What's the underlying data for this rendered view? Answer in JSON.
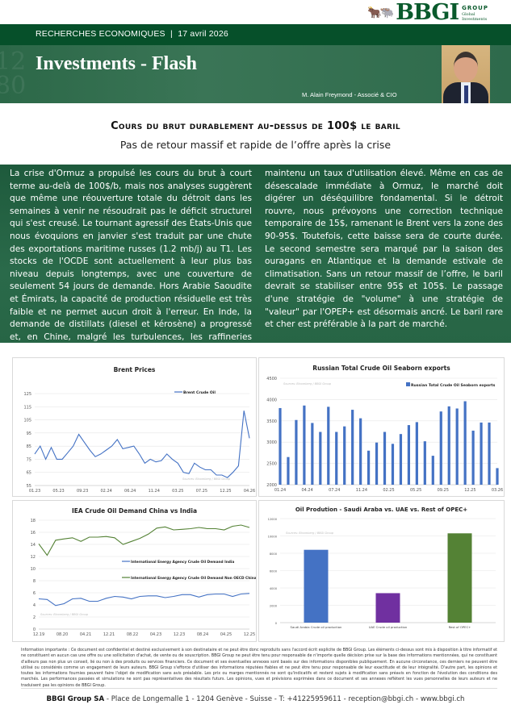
{
  "logo": {
    "name": "BBGI",
    "group": "GROUP",
    "line1": "Global",
    "line2": "Investments"
  },
  "header": {
    "section": "RECHERCHES ECONOMIQUES",
    "separator": "|",
    "date": "17 avril 2026",
    "title": "Investments - Flash",
    "author": "M. Alain Freymond - Associé & CIO"
  },
  "article": {
    "headline": "Cours du brut durablement au-dessus de 100$ le baril",
    "subheadline": "Pas de retour massif et rapide de l’offre après la crise",
    "col_left": "La crise d'Ormuz a propulsé les cours du brut à court terme au-delà de 100$/b, mais nos analyses suggèrent que même une réouverture totale du détroit dans les semaines à venir ne résoudrait pas le déficit structurel qui s'est creusé. Le tournant agressif des États-Unis que nous évoquions en janvier s'est traduit par une chute des exportations maritime russes (1.2 mb/j) au T1. Les stocks de l'OCDE sont actuellement à leur plus bas niveau depuis longtemps, avec une couverture de seulement 54 jours de demande. Hors Arabie Saoudite et Émirats, la capacité de production résiduelle est très faible et ne permet aucun droit à l'erreur. En Inde, la demande de distillats (diesel et kérosène) a progressé et, en Chine, malgré les turbulences, les raffineries chinoises ont",
    "col_right": "maintenu un taux d'utilisation élevé. Même en cas de désescalade immédiate à Ormuz, le marché doit digérer un déséquilibre fondamental. Si le détroit rouvre, nous prévoyons une correction technique temporaire de 15$, ramenant le Brent vers la zone des 90-95$. Toutefois, cette baisse sera de courte durée. Le second semestre sera marqué par la saison des ouragans en Atlantique et la demande estivale de climatisation. Sans un retour massif de l’offre, le baril devrait se stabiliser entre 95$ et 105$. Le passage d'une stratégie de \"volume\" à une stratégie de \"valeur\" par l'OPEP+ est désormais ancré. Le baril rare et cher est préférable à la part de marché."
  },
  "chart_data": [
    {
      "type": "line",
      "title": "Brent Prices",
      "source": "Sources: Bloomberg / BBGI Group",
      "legend_position": "top-right",
      "grid": true,
      "ylim": [
        55,
        125
      ],
      "yticks": [
        55,
        65,
        75,
        85,
        95,
        105,
        115,
        125
      ],
      "xticks": [
        "01.23",
        "05.23",
        "09.23",
        "02.24",
        "06.24",
        "11.24",
        "03.25",
        "07.25",
        "12.25",
        "04.26"
      ],
      "series": [
        {
          "name": "Brent Crude Oil",
          "color": "#4472c4",
          "values": [
            79,
            85,
            75,
            84,
            75,
            75,
            80,
            85,
            94,
            88,
            82,
            77,
            79,
            82,
            85,
            90,
            83,
            84,
            85,
            79,
            72,
            75,
            73,
            74,
            79,
            75,
            72,
            65,
            64,
            72,
            69,
            67,
            67,
            63,
            63,
            61,
            65,
            70,
            112,
            91
          ]
        }
      ]
    },
    {
      "type": "bar",
      "title": "Russian Total Crude Oil Seaborn exports",
      "source": "Sources: Bloomberg / BBGI Group",
      "legend_position": "top-right",
      "grid": true,
      "ylim": [
        2000,
        4500
      ],
      "yticks": [
        2000,
        2500,
        3000,
        3500,
        4000,
        4500
      ],
      "xticks": [
        "01.24",
        "04.24",
        "07.24",
        "11.24",
        "02.25",
        "05.25",
        "09.25",
        "12.25",
        "03.26"
      ],
      "series": [
        {
          "name": "Russian Total Crude Oil Seaborn exports",
          "color": "#4472c4",
          "values": [
            3800,
            2650,
            3520,
            3860,
            3450,
            3240,
            3830,
            3240,
            3370,
            3760,
            3560,
            2800,
            2990,
            3240,
            2960,
            3190,
            3400,
            3470,
            3020,
            2680,
            3720,
            3840,
            3790,
            3960,
            3270,
            3460,
            3460,
            2390
          ]
        }
      ]
    },
    {
      "type": "line",
      "title": "IEA Crude Oil Demand China vs India",
      "source": "Sources: Bloomberg / BBGI Group",
      "legend_position": "center-right",
      "grid": true,
      "ylim": [
        0,
        18
      ],
      "yticks": [
        0,
        2,
        4,
        6,
        8,
        10,
        12,
        14,
        16,
        18
      ],
      "xticks": [
        "12.19",
        "08.20",
        "04.21",
        "12.21",
        "08.22",
        "04.23",
        "12.23",
        "08.24",
        "04.25",
        "12.25"
      ],
      "series": [
        {
          "name": "International Energy Agency Crude Oil Demand India",
          "color": "#4472c4",
          "values": [
            5.0,
            4.9,
            3.9,
            4.2,
            5.0,
            5.1,
            4.6,
            4.6,
            5.1,
            5.4,
            5.3,
            5.0,
            5.4,
            5.5,
            5.5,
            5.2,
            5.4,
            5.7,
            5.7,
            5.3,
            5.7,
            5.8,
            5.8,
            5.4,
            5.8,
            5.9
          ]
        },
        {
          "name": "International Energy Agency Crude Oil Demand Non OECD China",
          "color": "#548235",
          "values": [
            14.1,
            12.2,
            14.7,
            14.9,
            15.1,
            14.5,
            15.2,
            15.2,
            15.3,
            15.1,
            14.0,
            14.5,
            15.0,
            15.7,
            16.7,
            16.9,
            16.4,
            16.5,
            16.6,
            16.8,
            16.6,
            16.6,
            16.4,
            17.0,
            17.2,
            16.8
          ]
        }
      ]
    },
    {
      "type": "bar",
      "title": "Oil Prodution - Saudi Araba vs. UAE vs. Rest of OPEC+",
      "source": "Sources: Bloomberg / BBGI Group",
      "grid": true,
      "ylim": [
        0,
        12000
      ],
      "yticks": [
        0,
        2000,
        4000,
        6000,
        8000,
        10000,
        12000
      ],
      "categories": [
        "Saudi Arabia Crude oil production",
        "UAE Crude oil production",
        "Rest of OPEC+"
      ],
      "values": [
        8400,
        3400,
        10300
      ],
      "colors": [
        "#4472c4",
        "#7030a0",
        "#548235"
      ]
    }
  ],
  "disclaimer": "Information importante : Ce document est confidentiel et destiné exclusivement à son destinataire et ne peut être donc reproduits sans l'accord écrit explicite de BBGI Group. Les éléments ci-dessus sont mis à disposition à titre informatif et ne constituent en aucun cas une offre ou une sollicitation d'achat, de vente ou de souscription. BBGI Group ne peut être tenu pour responsable de n'importe quelle décision prise sur la base des informations mentionnées, qui ne constituent d'ailleurs pas non plus un conseil, lié ou non à des produits ou services financiers. Ce document et ses éventuelles annexes sont basés sur des informations disponibles publiquement. En aucune circonstance, ces derniers ne peuvent être utilisé ou considérés comme un engagement de leurs auteurs. BBGI Group s'efforce d'utiliser des informations réputées fiables et ne peut être tenu pour responsable de leur exactitude et de leur intégralité. D'autre part, les opinions et toutes les informations fournies peuvent faire l'objet de modification sans avis préalable. Les prix ou marges mentionnés ne sont qu'indicatifs et restent sujets à modification sans préavis en fonction de l'évolution des conditions des marchés. Les performances passées et simulations ne sont pas représentatives des résultats futurs. Les opinions, vues et prévisions exprimées dans ce document et ses annexes reflètent les vues personnelles de leurs auteurs et ne traduisent pas les opinions de BBGI Group.",
  "footer": {
    "company": "BBGI Group SA",
    "address": " - Place de Longemalle 1 - 1204 Genève - Suisse - T: +41225959611 - reception@bbgi.ch - www.bbgi.ch"
  }
}
